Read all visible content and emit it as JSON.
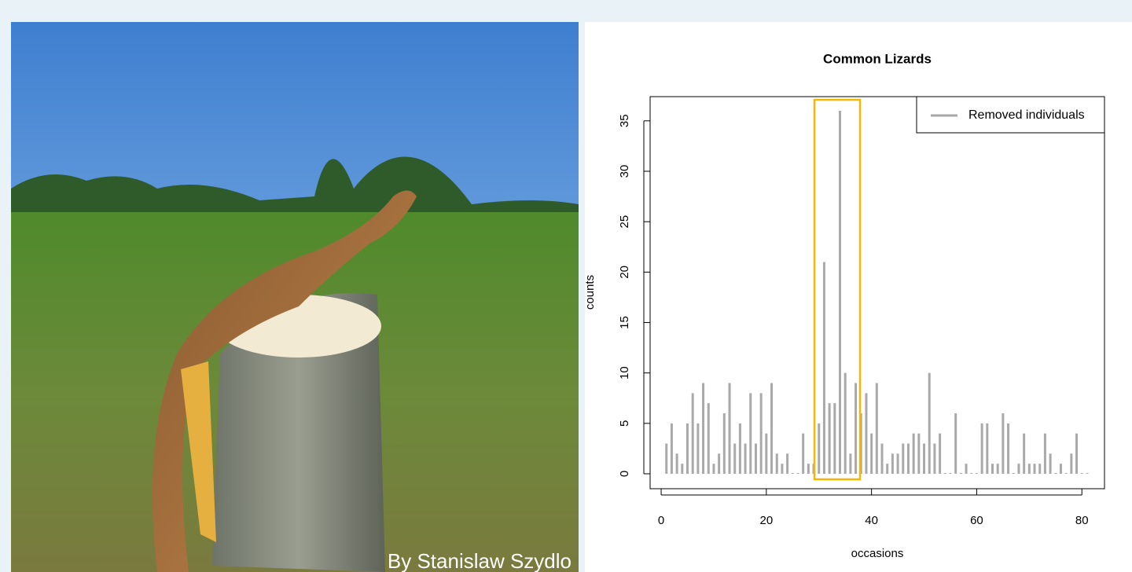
{
  "photo_credit": "By Stanislaw Szydlo",
  "chart_data": {
    "type": "bar",
    "title": "Common Lizards",
    "x_label": "occasions",
    "y_label": "counts",
    "x": [
      1,
      2,
      3,
      4,
      5,
      6,
      7,
      8,
      9,
      10,
      11,
      12,
      13,
      14,
      15,
      16,
      17,
      18,
      19,
      20,
      21,
      22,
      23,
      24,
      25,
      26,
      27,
      28,
      29,
      30,
      31,
      32,
      33,
      34,
      35,
      36,
      37,
      38,
      39,
      40,
      41,
      42,
      43,
      44,
      45,
      46,
      47,
      48,
      49,
      50,
      51,
      52,
      53,
      54,
      55,
      56,
      57,
      58,
      59,
      60,
      61,
      62,
      63,
      64,
      65,
      66,
      67,
      68,
      69,
      70,
      71,
      72,
      73,
      74,
      75,
      76,
      77,
      78,
      79,
      80,
      81
    ],
    "series": [
      {
        "name": "Removed individuals",
        "color": "#a9a9a9",
        "values": [
          3,
          5,
          2,
          1,
          5,
          8,
          5,
          9,
          7,
          1,
          2,
          6,
          9,
          3,
          5,
          3,
          8,
          3,
          8,
          4,
          9,
          2,
          1,
          2,
          0,
          0,
          4,
          1,
          1,
          5,
          21,
          7,
          7,
          36,
          10,
          2,
          9,
          6,
          8,
          4,
          9,
          3,
          1,
          2,
          2,
          3,
          3,
          4,
          4,
          3,
          10,
          3,
          4,
          0,
          0,
          6,
          0,
          1,
          0,
          0,
          5,
          5,
          1,
          1,
          6,
          5,
          0,
          1,
          4,
          1,
          1,
          1,
          4,
          2,
          0,
          1,
          0,
          2,
          4,
          0,
          0
        ]
      }
    ],
    "xlim": [
      -2.1,
      84.3
    ],
    "ylim": [
      -1.48,
      37.4
    ],
    "xticks": [
      0,
      20,
      40,
      60,
      80
    ],
    "yticks": [
      0,
      5,
      10,
      15,
      20,
      25,
      30,
      35
    ],
    "legend": "top-right"
  }
}
